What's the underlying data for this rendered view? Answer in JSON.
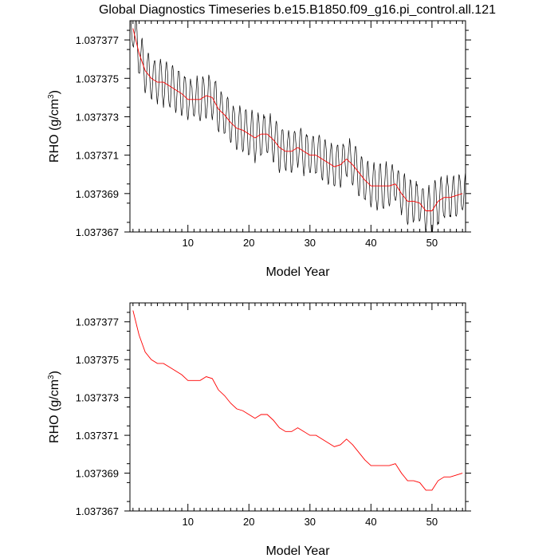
{
  "title": "Global Diagnostics Timeseries b.e15.B1850.f09_g16.pi_control.all.121",
  "colors": {
    "monthly": "#000000",
    "annual": "#ff0000",
    "frame": "#000000"
  },
  "chart_data": [
    {
      "type": "line",
      "xlabel": "Model Year",
      "ylabel_main": "RHO (g/cm",
      "ylabel_sup": "3",
      "ylabel_close": ")",
      "xlim": [
        0.5,
        55.5
      ],
      "ylim": [
        1.037367,
        1.037378
      ],
      "xticks": [
        10,
        20,
        30,
        40,
        50
      ],
      "yticks": [
        1.037367,
        1.037369,
        1.037371,
        1.037373,
        1.037375,
        1.037377
      ],
      "ytick_labels": [
        "1.037367",
        "1.037369",
        "1.037371",
        "1.037373",
        "1.037375",
        "1.037377"
      ],
      "series": [
        {
          "kind": "monthly",
          "color": "#000000",
          "amplitude": 1.1e-06,
          "peak_month": 1,
          "note_years": [
            1,
            55
          ]
        },
        {
          "kind": "annual",
          "color": "#ff0000",
          "x": [
            1,
            2,
            3,
            4,
            5,
            6,
            7,
            8,
            9,
            10,
            11,
            12,
            13,
            14,
            15,
            16,
            17,
            18,
            19,
            20,
            21,
            22,
            23,
            24,
            25,
            26,
            27,
            28,
            29,
            30,
            31,
            32,
            33,
            34,
            35,
            36,
            37,
            38,
            39,
            40,
            41,
            42,
            43,
            44,
            45,
            46,
            47,
            48,
            49,
            50,
            51,
            52,
            53,
            54,
            55
          ],
          "y": [
            1.0373776,
            1.0373763,
            1.0373754,
            1.037375,
            1.0373748,
            1.0373748,
            1.0373746,
            1.0373744,
            1.0373742,
            1.0373739,
            1.0373739,
            1.0373739,
            1.0373741,
            1.037374,
            1.0373734,
            1.0373731,
            1.0373727,
            1.0373724,
            1.0373723,
            1.0373721,
            1.0373719,
            1.0373721,
            1.0373721,
            1.0373718,
            1.0373714,
            1.0373712,
            1.0373712,
            1.0373714,
            1.0373712,
            1.037371,
            1.037371,
            1.0373708,
            1.0373706,
            1.0373704,
            1.0373705,
            1.0373708,
            1.0373705,
            1.0373701,
            1.0373697,
            1.0373694,
            1.0373694,
            1.0373694,
            1.0373694,
            1.0373695,
            1.037369,
            1.0373686,
            1.0373686,
            1.0373685,
            1.0373681,
            1.0373681,
            1.0373686,
            1.0373688,
            1.0373688,
            1.0373689,
            1.037369
          ]
        }
      ]
    },
    {
      "type": "line",
      "xlabel": "Model Year",
      "ylabel_main": "RHO (g/cm",
      "ylabel_sup": "3",
      "ylabel_close": ")",
      "xlim": [
        0.5,
        55.5
      ],
      "ylim": [
        1.037367,
        1.037378
      ],
      "xticks": [
        10,
        20,
        30,
        40,
        50
      ],
      "yticks": [
        1.037367,
        1.037369,
        1.037371,
        1.037373,
        1.037375,
        1.037377
      ],
      "ytick_labels": [
        "1.037367",
        "1.037369",
        "1.037371",
        "1.037373",
        "1.037375",
        "1.037377"
      ],
      "series": [
        {
          "kind": "annual",
          "color": "#ff0000",
          "x": [
            1,
            2,
            3,
            4,
            5,
            6,
            7,
            8,
            9,
            10,
            11,
            12,
            13,
            14,
            15,
            16,
            17,
            18,
            19,
            20,
            21,
            22,
            23,
            24,
            25,
            26,
            27,
            28,
            29,
            30,
            31,
            32,
            33,
            34,
            35,
            36,
            37,
            38,
            39,
            40,
            41,
            42,
            43,
            44,
            45,
            46,
            47,
            48,
            49,
            50,
            51,
            52,
            53,
            54,
            55
          ],
          "y": [
            1.0373776,
            1.0373763,
            1.0373754,
            1.037375,
            1.0373748,
            1.0373748,
            1.0373746,
            1.0373744,
            1.0373742,
            1.0373739,
            1.0373739,
            1.0373739,
            1.0373741,
            1.037374,
            1.0373734,
            1.0373731,
            1.0373727,
            1.0373724,
            1.0373723,
            1.0373721,
            1.0373719,
            1.0373721,
            1.0373721,
            1.0373718,
            1.0373714,
            1.0373712,
            1.0373712,
            1.0373714,
            1.0373712,
            1.037371,
            1.037371,
            1.0373708,
            1.0373706,
            1.0373704,
            1.0373705,
            1.0373708,
            1.0373705,
            1.0373701,
            1.0373697,
            1.0373694,
            1.0373694,
            1.0373694,
            1.0373694,
            1.0373695,
            1.037369,
            1.0373686,
            1.0373686,
            1.0373685,
            1.0373681,
            1.0373681,
            1.0373686,
            1.0373688,
            1.0373688,
            1.0373689,
            1.037369
          ]
        }
      ]
    }
  ]
}
